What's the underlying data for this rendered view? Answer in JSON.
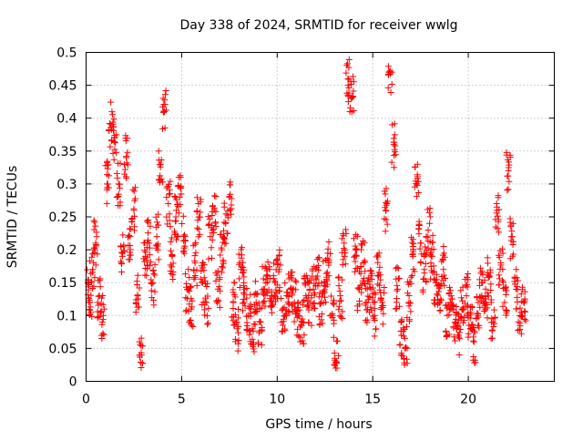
{
  "chart_data": {
    "type": "scatter",
    "title": "Day 338 of 2024, SRMTID for receiver wwlg",
    "xlabel": "GPS time / hours",
    "ylabel": "SRMTID / TECUs",
    "xlim": [
      0,
      24.5
    ],
    "ylim": [
      0,
      0.5
    ],
    "grid": true,
    "marker": "+",
    "x_ticks": [
      0,
      5,
      10,
      15,
      20
    ],
    "x_tick_labels": [
      "0",
      "5",
      "10",
      "15",
      "20"
    ],
    "y_ticks": [
      0,
      0.05,
      0.1,
      0.15,
      0.2,
      0.25,
      0.3,
      0.35,
      0.4,
      0.45,
      0.5
    ],
    "y_tick_labels": [
      "0",
      "0.05",
      "0.1",
      "0.15",
      "0.2",
      "0.25",
      "0.3",
      "0.35",
      "0.4",
      "0.45",
      "0.5"
    ],
    "series": [
      {
        "name": "SRMTID",
        "color": "#ff0000",
        "x": [
          0.1,
          0.2,
          0.35,
          0.5,
          0.7,
          0.9,
          1.1,
          1.3,
          1.5,
          1.7,
          1.9,
          2.1,
          2.3,
          2.5,
          2.7,
          2.9,
          3.1,
          3.3,
          3.5,
          3.7,
          3.9,
          4.1,
          4.3,
          4.5,
          4.7,
          4.9,
          5.1,
          5.3,
          5.5,
          5.7,
          5.9,
          6.1,
          6.3,
          6.5,
          6.7,
          6.9,
          7.1,
          7.3,
          7.5,
          7.7,
          7.9,
          8.1,
          8.3,
          8.5,
          8.7,
          8.9,
          9.1,
          9.3,
          9.5,
          9.7,
          9.9,
          10.1,
          10.3,
          10.5,
          10.7,
          10.9,
          11.1,
          11.3,
          11.5,
          11.7,
          11.9,
          12.1,
          12.3,
          12.5,
          12.7,
          12.9,
          13.1,
          13.3,
          13.5,
          13.7,
          13.9,
          14.1,
          14.3,
          14.5,
          14.7,
          14.9,
          15.1,
          15.3,
          15.5,
          15.7,
          15.9,
          16.1,
          16.3,
          16.5,
          16.7,
          16.9,
          17.1,
          17.3,
          17.5,
          17.7,
          17.9,
          18.1,
          18.3,
          18.5,
          18.7,
          18.9,
          19.1,
          19.3,
          19.5,
          19.7,
          19.9,
          20.1,
          20.3,
          20.5,
          20.7,
          20.9,
          21.1,
          21.3,
          21.5,
          21.7,
          21.9,
          22.1,
          22.3,
          22.5,
          22.7,
          22.9,
          0.15,
          0.12,
          0.17,
          0.21,
          0.13,
          0.1,
          0.3,
          0.39,
          0.37,
          0.3,
          0.19,
          0.34,
          0.22,
          0.26,
          0.13,
          0.04,
          0.19,
          0.21,
          0.15,
          0.22,
          0.33,
          0.41,
          0.27,
          0.19,
          0.25,
          0.28,
          0.22,
          0.14,
          0.11,
          0.18,
          0.25,
          0.15,
          0.12,
          0.22,
          0.26,
          0.14,
          0.2,
          0.24,
          0.28,
          0.12,
          0.08,
          0.17,
          0.14,
          0.1,
          0.08,
          0.12,
          0.09,
          0.14,
          0.16,
          0.13,
          0.15,
          0.17,
          0.11,
          0.13,
          0.14,
          0.12,
          0.1,
          0.09,
          0.13,
          0.12,
          0.14,
          0.16,
          0.12,
          0.15,
          0.18,
          0.1,
          0.03,
          0.13,
          0.21,
          0.46,
          0.43,
          0.2,
          0.14,
          0.18,
          0.12,
          0.14,
          0.1,
          0.16,
          0.12,
          0.26,
          0.47,
          0.36,
          0.14,
          0.07,
          0.05,
          0.12,
          0.19,
          0.3,
          0.21,
          0.17,
          0.23,
          0.19,
          0.15,
          0.12,
          0.17,
          0.1,
          0.13,
          0.09,
          0.07,
          0.11,
          0.13,
          0.08,
          0.06,
          0.1,
          0.15,
          0.12,
          0.16,
          0.09,
          0.26,
          0.18,
          0.12,
          0.32,
          0.22,
          0.14,
          0.1,
          0.12
        ],
        "y_note": "values listed pairwise: first 116 are x (hours), next 116 are y (TECUs) — see split below"
      }
    ]
  }
}
